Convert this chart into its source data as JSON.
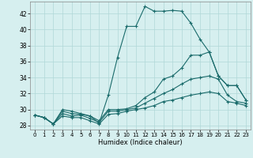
{
  "xlabel": "Humidex (Indice chaleur)",
  "xlim": [
    -0.5,
    23.5
  ],
  "ylim": [
    27.5,
    43.5
  ],
  "yticks": [
    28,
    30,
    32,
    34,
    36,
    38,
    40,
    42
  ],
  "xticks": [
    0,
    1,
    2,
    3,
    4,
    5,
    6,
    7,
    8,
    9,
    10,
    11,
    12,
    13,
    14,
    15,
    16,
    17,
    18,
    19,
    20,
    21,
    22,
    23
  ],
  "bg_color": "#d6efef",
  "grid_color": "#b0d8d8",
  "line_color": "#1a6b6b",
  "series": [
    {
      "x": [
        0,
        1,
        2,
        3,
        4,
        5,
        6,
        7,
        8,
        9,
        10,
        11,
        12,
        13,
        14,
        15,
        16,
        17,
        18,
        19,
        20,
        21,
        22,
        23
      ],
      "y": [
        29.3,
        29.0,
        28.2,
        30.0,
        29.8,
        29.5,
        29.2,
        28.3,
        31.8,
        36.5,
        40.4,
        40.4,
        42.9,
        42.3,
        42.3,
        42.4,
        42.3,
        40.8,
        38.8,
        37.2,
        34.2,
        33.0,
        33.0,
        31.2
      ]
    },
    {
      "x": [
        0,
        1,
        2,
        3,
        4,
        5,
        6,
        7,
        8,
        9,
        10,
        11,
        12,
        13,
        14,
        15,
        16,
        17,
        18,
        19,
        20,
        21,
        22,
        23
      ],
      "y": [
        29.3,
        29.0,
        28.2,
        29.8,
        29.5,
        29.4,
        29.2,
        28.6,
        30.0,
        30.0,
        30.1,
        30.5,
        31.5,
        32.2,
        33.8,
        34.2,
        35.2,
        36.8,
        36.8,
        37.2,
        34.2,
        33.0,
        33.0,
        31.2
      ]
    },
    {
      "x": [
        0,
        1,
        2,
        3,
        4,
        5,
        6,
        7,
        8,
        9,
        10,
        11,
        12,
        13,
        14,
        15,
        16,
        17,
        18,
        19,
        20,
        21,
        22,
        23
      ],
      "y": [
        29.3,
        29.0,
        28.2,
        29.5,
        29.2,
        29.3,
        28.9,
        28.4,
        29.8,
        29.8,
        30.0,
        30.2,
        30.8,
        31.4,
        32.0,
        32.5,
        33.2,
        33.8,
        34.0,
        34.2,
        33.8,
        31.8,
        31.0,
        30.8
      ]
    },
    {
      "x": [
        0,
        1,
        2,
        3,
        4,
        5,
        6,
        7,
        8,
        9,
        10,
        11,
        12,
        13,
        14,
        15,
        16,
        17,
        18,
        19,
        20,
        21,
        22,
        23
      ],
      "y": [
        29.3,
        29.0,
        28.2,
        29.2,
        29.0,
        29.0,
        28.6,
        28.2,
        29.4,
        29.5,
        29.8,
        30.0,
        30.2,
        30.5,
        31.0,
        31.2,
        31.5,
        31.8,
        32.0,
        32.2,
        32.0,
        31.0,
        30.8,
        30.5
      ]
    }
  ]
}
